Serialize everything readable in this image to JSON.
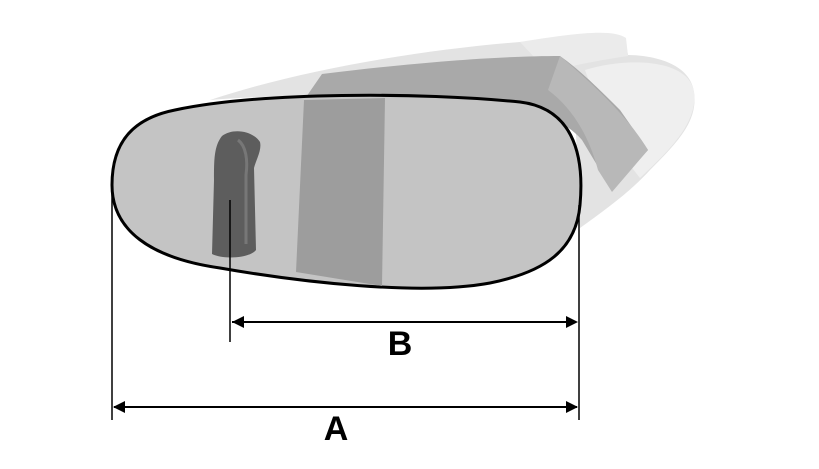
{
  "diagram": {
    "subject": "bag-with-handle-and-strap",
    "dimensions": {
      "a_label": "A",
      "b_label": "B"
    }
  },
  "colors": {
    "background": "#ffffff",
    "body_fill": "#c4c4c4",
    "body_side": "#e3e3e3",
    "strap": "#9d9d9d",
    "strap_side": "#b8b8b8",
    "handle": "#5d5d5d",
    "outline": "#000000",
    "dimension_line": "#000000"
  }
}
